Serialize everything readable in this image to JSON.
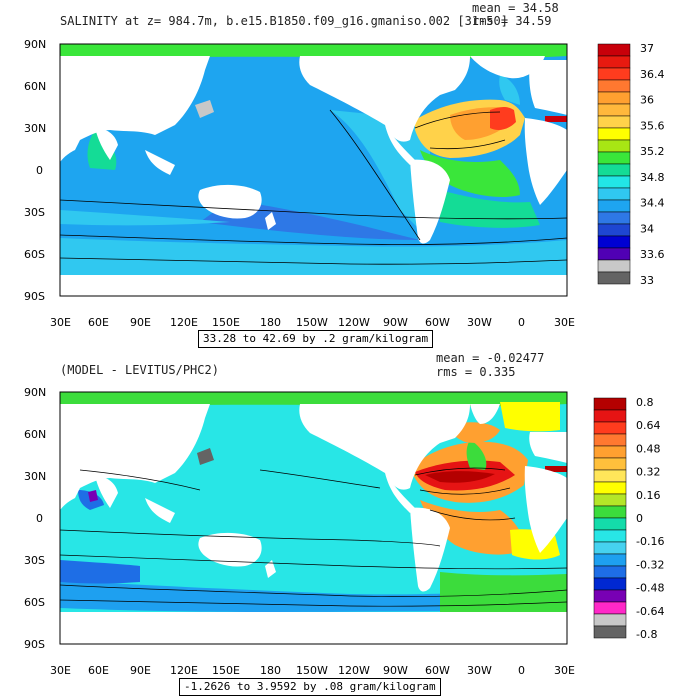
{
  "chart_data": [
    {
      "type": "heatmap",
      "title": "SALINITY at z= 984.7m, b.e15.B1850.f09_g16.gmaniso.002 [31-50]",
      "stats": {
        "mean": "mean = 34.58",
        "rms": "rms = 34.59"
      },
      "x_ticks": [
        "30E",
        "60E",
        "90E",
        "120E",
        "150E",
        "180",
        "150W",
        "120W",
        "90W",
        "60W",
        "30W",
        "0",
        "30E"
      ],
      "y_ticks": [
        "90N",
        "60N",
        "30N",
        "0",
        "30S",
        "60S",
        "90S"
      ],
      "colorbar_labels": [
        "37",
        "36.4",
        "36",
        "35.6",
        "35.2",
        "34.8",
        "34.4",
        "34",
        "33.6",
        "33"
      ],
      "colorbar_colors": [
        "#c8000a",
        "#e81a10",
        "#ff3c1e",
        "#ff7830",
        "#ffa030",
        "#ffb83c",
        "#ffd24a",
        "#ffff00",
        "#a8e614",
        "#3ae63a",
        "#14dc96",
        "#22e6e6",
        "#30c8f0",
        "#1ea5f0",
        "#2e78e6",
        "#1e46d2",
        "#0000d2",
        "#5000b4",
        "#c8c8c8",
        "#646464"
      ],
      "range_note": "33.28 to 42.69 by .2 gram/kilogram",
      "xlim": [
        "30E",
        "30E"
      ],
      "ylim": [
        "90S",
        "90N"
      ]
    },
    {
      "type": "heatmap",
      "title": "(MODEL - LEVITUS/PHC2)",
      "stats": {
        "mean": "mean = -0.02477",
        "rms": "rms = 0.335"
      },
      "x_ticks": [
        "30E",
        "60E",
        "90E",
        "120E",
        "150E",
        "180",
        "150W",
        "120W",
        "90W",
        "60W",
        "30W",
        "0",
        "30E"
      ],
      "y_ticks": [
        "90N",
        "60N",
        "30N",
        "0",
        "30S",
        "60S",
        "90S"
      ],
      "colorbar_labels": [
        "0.8",
        "0.64",
        "0.48",
        "0.32",
        "0.16",
        "0",
        "-0.16",
        "-0.32",
        "-0.48",
        "-0.64",
        "-0.8"
      ],
      "colorbar_colors": [
        "#b40000",
        "#e61414",
        "#ff3c1e",
        "#ff7830",
        "#ffa030",
        "#ffc03c",
        "#ffe65a",
        "#ffff00",
        "#b4e628",
        "#3cdc3c",
        "#14dcaa",
        "#28e6e6",
        "#46d2f0",
        "#1ea0f0",
        "#1e6ee6",
        "#0028d2",
        "#7800b4",
        "#ff28c8",
        "#c8c8c8",
        "#646464"
      ],
      "range_note": "-1.2626 to 3.9592 by .08 gram/kilogram",
      "xlim": [
        "30E",
        "30E"
      ],
      "ylim": [
        "90S",
        "90N"
      ]
    }
  ]
}
